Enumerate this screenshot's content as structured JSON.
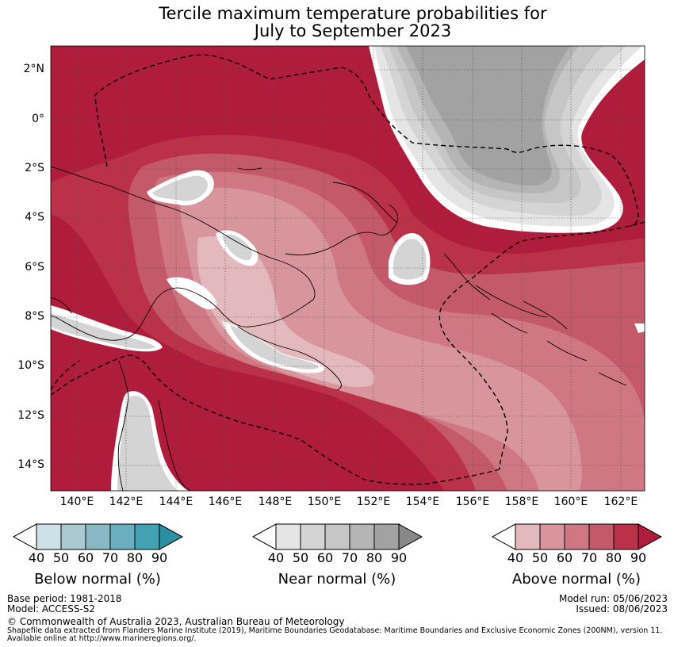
{
  "title_line1": "Tercile maximum temperature probabilities for",
  "title_line2": "July to September 2023",
  "lat_labels": [
    "2°N",
    "0°",
    "2°S",
    "4°S",
    "6°S",
    "8°S",
    "10°S",
    "12°S",
    "14°S"
  ],
  "lon_labels": [
    "140°E",
    "142°E",
    "144°E",
    "146°E",
    "148°E",
    "150°E",
    "152°E",
    "154°E",
    "156°E",
    "158°E",
    "160°E",
    "162°E"
  ],
  "colorbars": [
    {
      "label": "Below normal (%)",
      "ticks": [
        "40",
        "50",
        "60",
        "70",
        "80",
        "90"
      ],
      "colors": [
        "#cde2e8",
        "#a9c8d0",
        "#8ab9c6",
        "#6aaebf",
        "#43a1b4",
        "#2b8fa3"
      ]
    },
    {
      "label": "Near normal (%)",
      "ticks": [
        "40",
        "50",
        "60",
        "70",
        "80",
        "90"
      ],
      "colors": [
        "#e5e5e5",
        "#d4d4d4",
        "#c6c6c6",
        "#b5b5b5",
        "#a2a2a2",
        "#888888"
      ]
    },
    {
      "label": "Above normal (%)",
      "ticks": [
        "40",
        "50",
        "60",
        "70",
        "80",
        "90"
      ],
      "colors": [
        "#e3b9bd",
        "#d8959c",
        "#cf7883",
        "#c45a69",
        "#ba3148",
        "#b01c3b"
      ]
    }
  ],
  "base_period": "Base period: 1981-2018",
  "model": "Model: ACCESS-S2",
  "model_run": "Model run: 05/06/2023",
  "issued": "Issued: 08/06/2023",
  "copyright": "© Commonwealth of Australia 2023, Australian Bureau of Meteorology",
  "shapefile_line1": "Shapefile data extracted from Flanders Marine Institute (2019), Maritime Boundaries Geodatabase: Maritime Boundaries and Exclusive Economic Zones (200NM), version 11.",
  "shapefile_line2": "Available online at http://www.marineregions.org/."
}
